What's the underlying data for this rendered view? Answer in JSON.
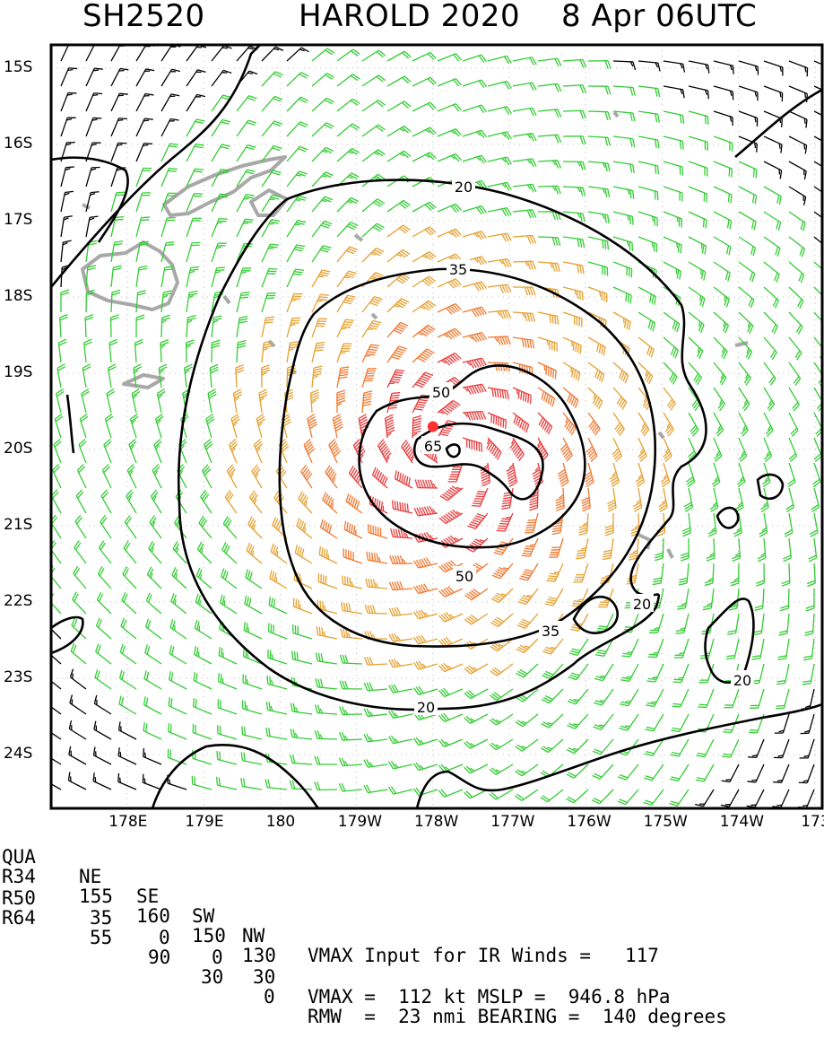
{
  "title": {
    "storm_id": "SH2520",
    "storm_name": "HAROLD 2020",
    "time": "8 Apr 06UTC"
  },
  "map": {
    "lat_labels": [
      "15S",
      "16S",
      "17S",
      "18S",
      "19S",
      "20S",
      "21S",
      "22S",
      "23S",
      "24S"
    ],
    "lon_labels": [
      "178E",
      "179E",
      "180",
      "179W",
      "178W",
      "177W",
      "176W",
      "175W",
      "174W",
      "173"
    ],
    "contour_labels": [
      "20",
      "35",
      "50",
      "65",
      "50",
      "35",
      "20",
      "20",
      "20"
    ],
    "colors": {
      "below34": "#000000",
      "gale": "#33cc33",
      "storm": "#e6a030",
      "strong": "#f07830",
      "hurricane": "#e83c3c",
      "land": "#a8a8a8"
    },
    "center_marker": {
      "lat": -19.7,
      "lon": -178.0,
      "color": "#ff3030"
    }
  },
  "stats": {
    "header": {
      "label": "QUA",
      "ne": "NE",
      "se": "SE",
      "sw": "SW",
      "nw": "NW",
      "text": "VMAX Input for IR Winds =   117"
    },
    "r34": {
      "label": "R34",
      "ne": "155",
      "se": "160",
      "sw": "150",
      "nw": "130",
      "text": ""
    },
    "r50": {
      "label": "R50",
      "ne": "35",
      "se": "0",
      "sw": "0",
      "nw": "30",
      "text": "VMAX =  112 kt MSLP =  946.8 hPa"
    },
    "r64": {
      "label": "R64",
      "ne": "55",
      "se": "90",
      "sw": "30",
      "nw": "0",
      "text": "RMW  =  23 nmi BEARING =  140 degrees"
    }
  }
}
